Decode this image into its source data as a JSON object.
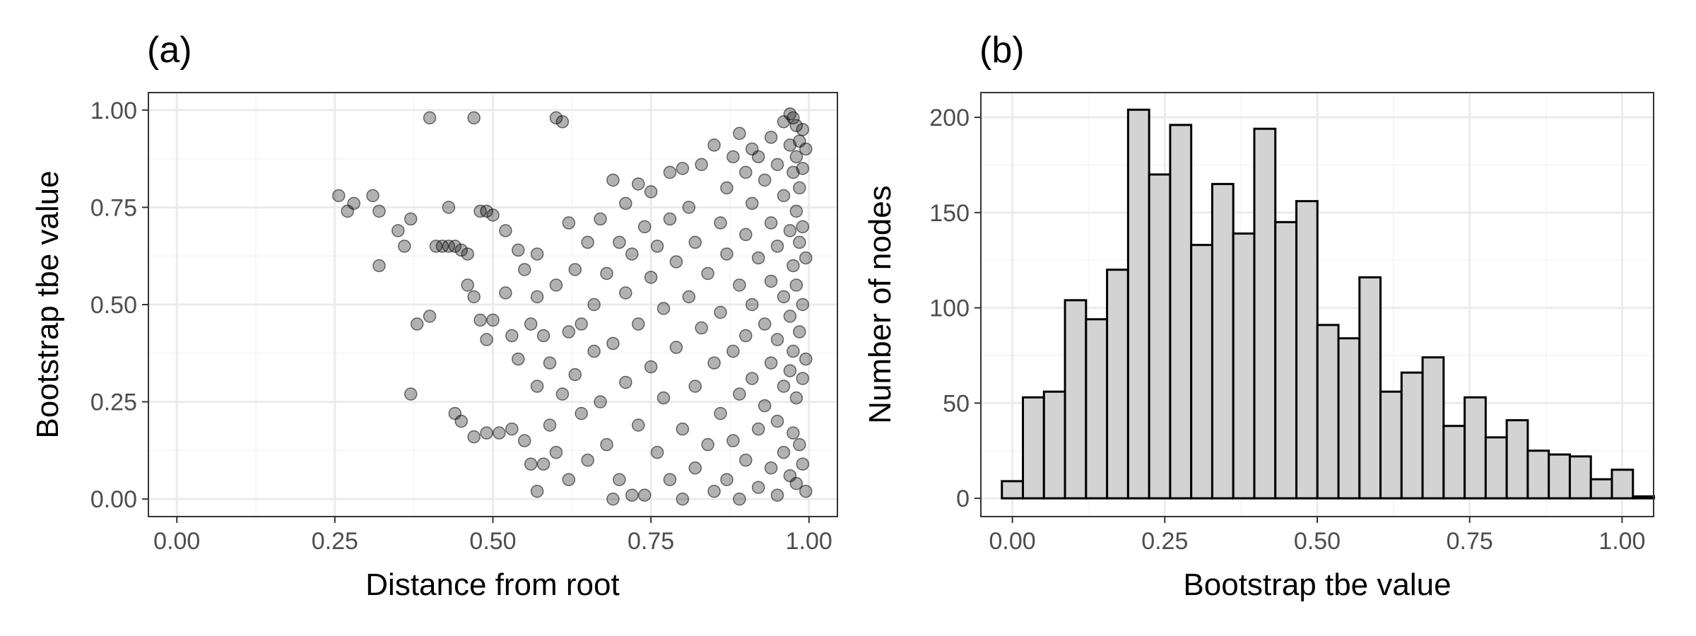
{
  "chart_data": [
    {
      "panel_label": "(a)",
      "type": "scatter",
      "xlabel": "Distance from root",
      "ylabel": "Bootstrap tbe value",
      "xlim": [
        0,
        1
      ],
      "ylim": [
        0,
        1
      ],
      "xticks": [
        "0.00",
        "0.25",
        "0.50",
        "0.75",
        "1.00"
      ],
      "yticks": [
        "0.00",
        "0.25",
        "0.50",
        "0.75",
        "1.00"
      ],
      "point_color": "#000000",
      "point_alpha": 0.3,
      "grid": true,
      "points": [
        [
          0.256,
          0.78
        ],
        [
          0.27,
          0.74
        ],
        [
          0.28,
          0.76
        ],
        [
          0.31,
          0.78
        ],
        [
          0.32,
          0.74
        ],
        [
          0.32,
          0.6
        ],
        [
          0.35,
          0.69
        ],
        [
          0.36,
          0.65
        ],
        [
          0.37,
          0.72
        ],
        [
          0.37,
          0.27
        ],
        [
          0.38,
          0.45
        ],
        [
          0.4,
          0.98
        ],
        [
          0.4,
          0.47
        ],
        [
          0.41,
          0.65
        ],
        [
          0.42,
          0.65
        ],
        [
          0.43,
          0.75
        ],
        [
          0.43,
          0.65
        ],
        [
          0.44,
          0.65
        ],
        [
          0.44,
          0.22
        ],
        [
          0.45,
          0.64
        ],
        [
          0.45,
          0.2
        ],
        [
          0.46,
          0.63
        ],
        [
          0.46,
          0.55
        ],
        [
          0.47,
          0.98
        ],
        [
          0.47,
          0.52
        ],
        [
          0.47,
          0.16
        ],
        [
          0.48,
          0.74
        ],
        [
          0.48,
          0.46
        ],
        [
          0.49,
          0.74
        ],
        [
          0.49,
          0.41
        ],
        [
          0.49,
          0.17
        ],
        [
          0.5,
          0.73
        ],
        [
          0.5,
          0.46
        ],
        [
          0.51,
          0.17
        ],
        [
          0.52,
          0.69
        ],
        [
          0.52,
          0.53
        ],
        [
          0.53,
          0.42
        ],
        [
          0.53,
          0.18
        ],
        [
          0.54,
          0.64
        ],
        [
          0.54,
          0.36
        ],
        [
          0.55,
          0.59
        ],
        [
          0.55,
          0.15
        ],
        [
          0.56,
          0.45
        ],
        [
          0.56,
          0.09
        ],
        [
          0.57,
          0.63
        ],
        [
          0.57,
          0.52
        ],
        [
          0.57,
          0.29
        ],
        [
          0.57,
          0.02
        ],
        [
          0.58,
          0.42
        ],
        [
          0.58,
          0.09
        ],
        [
          0.59,
          0.35
        ],
        [
          0.59,
          0.19
        ],
        [
          0.6,
          0.98
        ],
        [
          0.6,
          0.55
        ],
        [
          0.6,
          0.12
        ],
        [
          0.61,
          0.97
        ],
        [
          0.61,
          0.27
        ],
        [
          0.62,
          0.71
        ],
        [
          0.62,
          0.43
        ],
        [
          0.62,
          0.05
        ],
        [
          0.63,
          0.59
        ],
        [
          0.63,
          0.32
        ],
        [
          0.64,
          0.45
        ],
        [
          0.64,
          0.22
        ],
        [
          0.65,
          0.66
        ],
        [
          0.65,
          0.1
        ],
        [
          0.66,
          0.5
        ],
        [
          0.66,
          0.38
        ],
        [
          0.67,
          0.72
        ],
        [
          0.67,
          0.25
        ],
        [
          0.68,
          0.58
        ],
        [
          0.68,
          0.14
        ],
        [
          0.69,
          0.82
        ],
        [
          0.69,
          0.4
        ],
        [
          0.69,
          0.0
        ],
        [
          0.7,
          0.66
        ],
        [
          0.7,
          0.05
        ],
        [
          0.71,
          0.76
        ],
        [
          0.71,
          0.53
        ],
        [
          0.71,
          0.3
        ],
        [
          0.72,
          0.63
        ],
        [
          0.72,
          0.01
        ],
        [
          0.73,
          0.81
        ],
        [
          0.73,
          0.45
        ],
        [
          0.73,
          0.19
        ],
        [
          0.74,
          0.7
        ],
        [
          0.74,
          0.01
        ],
        [
          0.75,
          0.79
        ],
        [
          0.75,
          0.57
        ],
        [
          0.75,
          0.34
        ],
        [
          0.76,
          0.65
        ],
        [
          0.76,
          0.12
        ],
        [
          0.77,
          0.49
        ],
        [
          0.77,
          0.26
        ],
        [
          0.78,
          0.84
        ],
        [
          0.78,
          0.72
        ],
        [
          0.78,
          0.05
        ],
        [
          0.79,
          0.61
        ],
        [
          0.79,
          0.39
        ],
        [
          0.8,
          0.85
        ],
        [
          0.8,
          0.18
        ],
        [
          0.8,
          0.0
        ],
        [
          0.81,
          0.75
        ],
        [
          0.81,
          0.52
        ],
        [
          0.82,
          0.66
        ],
        [
          0.82,
          0.29
        ],
        [
          0.82,
          0.08
        ],
        [
          0.83,
          0.86
        ],
        [
          0.83,
          0.44
        ],
        [
          0.84,
          0.58
        ],
        [
          0.84,
          0.14
        ],
        [
          0.85,
          0.91
        ],
        [
          0.85,
          0.35
        ],
        [
          0.85,
          0.02
        ],
        [
          0.86,
          0.71
        ],
        [
          0.86,
          0.48
        ],
        [
          0.86,
          0.22
        ],
        [
          0.87,
          0.8
        ],
        [
          0.87,
          0.63
        ],
        [
          0.87,
          0.05
        ],
        [
          0.88,
          0.88
        ],
        [
          0.88,
          0.38
        ],
        [
          0.88,
          0.15
        ],
        [
          0.89,
          0.94
        ],
        [
          0.89,
          0.55
        ],
        [
          0.89,
          0.27
        ],
        [
          0.89,
          0.0
        ],
        [
          0.9,
          0.84
        ],
        [
          0.9,
          0.68
        ],
        [
          0.9,
          0.42
        ],
        [
          0.9,
          0.1
        ],
        [
          0.91,
          0.9
        ],
        [
          0.91,
          0.76
        ],
        [
          0.91,
          0.5
        ],
        [
          0.91,
          0.31
        ],
        [
          0.92,
          0.88
        ],
        [
          0.92,
          0.62
        ],
        [
          0.92,
          0.18
        ],
        [
          0.92,
          0.03
        ],
        [
          0.93,
          0.82
        ],
        [
          0.93,
          0.45
        ],
        [
          0.93,
          0.24
        ],
        [
          0.94,
          0.93
        ],
        [
          0.94,
          0.71
        ],
        [
          0.94,
          0.56
        ],
        [
          0.94,
          0.35
        ],
        [
          0.94,
          0.08
        ],
        [
          0.95,
          0.86
        ],
        [
          0.95,
          0.65
        ],
        [
          0.95,
          0.41
        ],
        [
          0.95,
          0.2
        ],
        [
          0.95,
          0.01
        ],
        [
          0.96,
          0.97
        ],
        [
          0.96,
          0.78
        ],
        [
          0.96,
          0.52
        ],
        [
          0.96,
          0.29
        ],
        [
          0.96,
          0.12
        ],
        [
          0.97,
          0.99
        ],
        [
          0.97,
          0.91
        ],
        [
          0.97,
          0.69
        ],
        [
          0.97,
          0.47
        ],
        [
          0.97,
          0.33
        ],
        [
          0.97,
          0.06
        ],
        [
          0.975,
          0.98
        ],
        [
          0.975,
          0.84
        ],
        [
          0.975,
          0.6
        ],
        [
          0.975,
          0.38
        ],
        [
          0.975,
          0.17
        ],
        [
          0.98,
          0.96
        ],
        [
          0.98,
          0.88
        ],
        [
          0.98,
          0.74
        ],
        [
          0.98,
          0.55
        ],
        [
          0.98,
          0.26
        ],
        [
          0.98,
          0.04
        ],
        [
          0.985,
          0.92
        ],
        [
          0.985,
          0.8
        ],
        [
          0.985,
          0.66
        ],
        [
          0.985,
          0.43
        ],
        [
          0.985,
          0.14
        ],
        [
          0.99,
          0.95
        ],
        [
          0.99,
          0.85
        ],
        [
          0.99,
          0.7
        ],
        [
          0.99,
          0.5
        ],
        [
          0.99,
          0.31
        ],
        [
          0.99,
          0.09
        ],
        [
          0.995,
          0.9
        ],
        [
          0.995,
          0.62
        ],
        [
          0.995,
          0.36
        ],
        [
          0.995,
          0.02
        ]
      ]
    },
    {
      "panel_label": "(b)",
      "type": "bar",
      "subtype": "histogram",
      "xlabel": "Bootstrap tbe value",
      "ylabel": "Number of nodes",
      "xlim": [
        -0.0517,
        1.0517
      ],
      "ylim": [
        0,
        213
      ],
      "xticks": [
        "0.00",
        "0.25",
        "0.50",
        "0.75",
        "1.00"
      ],
      "yticks": [
        "0",
        "50",
        "100",
        "150",
        "200"
      ],
      "bin_width": 0.0345,
      "bin_start": -0.0172,
      "bar_fill": "#d3d3d3",
      "bar_stroke": "#000000",
      "grid": true,
      "values": [
        9,
        53,
        56,
        104,
        94,
        120,
        204,
        170,
        196,
        133,
        165,
        139,
        194,
        145,
        156,
        91,
        84,
        116,
        56,
        66,
        74,
        38,
        53,
        32,
        41,
        25,
        23,
        22,
        10,
        15,
        1
      ]
    }
  ]
}
